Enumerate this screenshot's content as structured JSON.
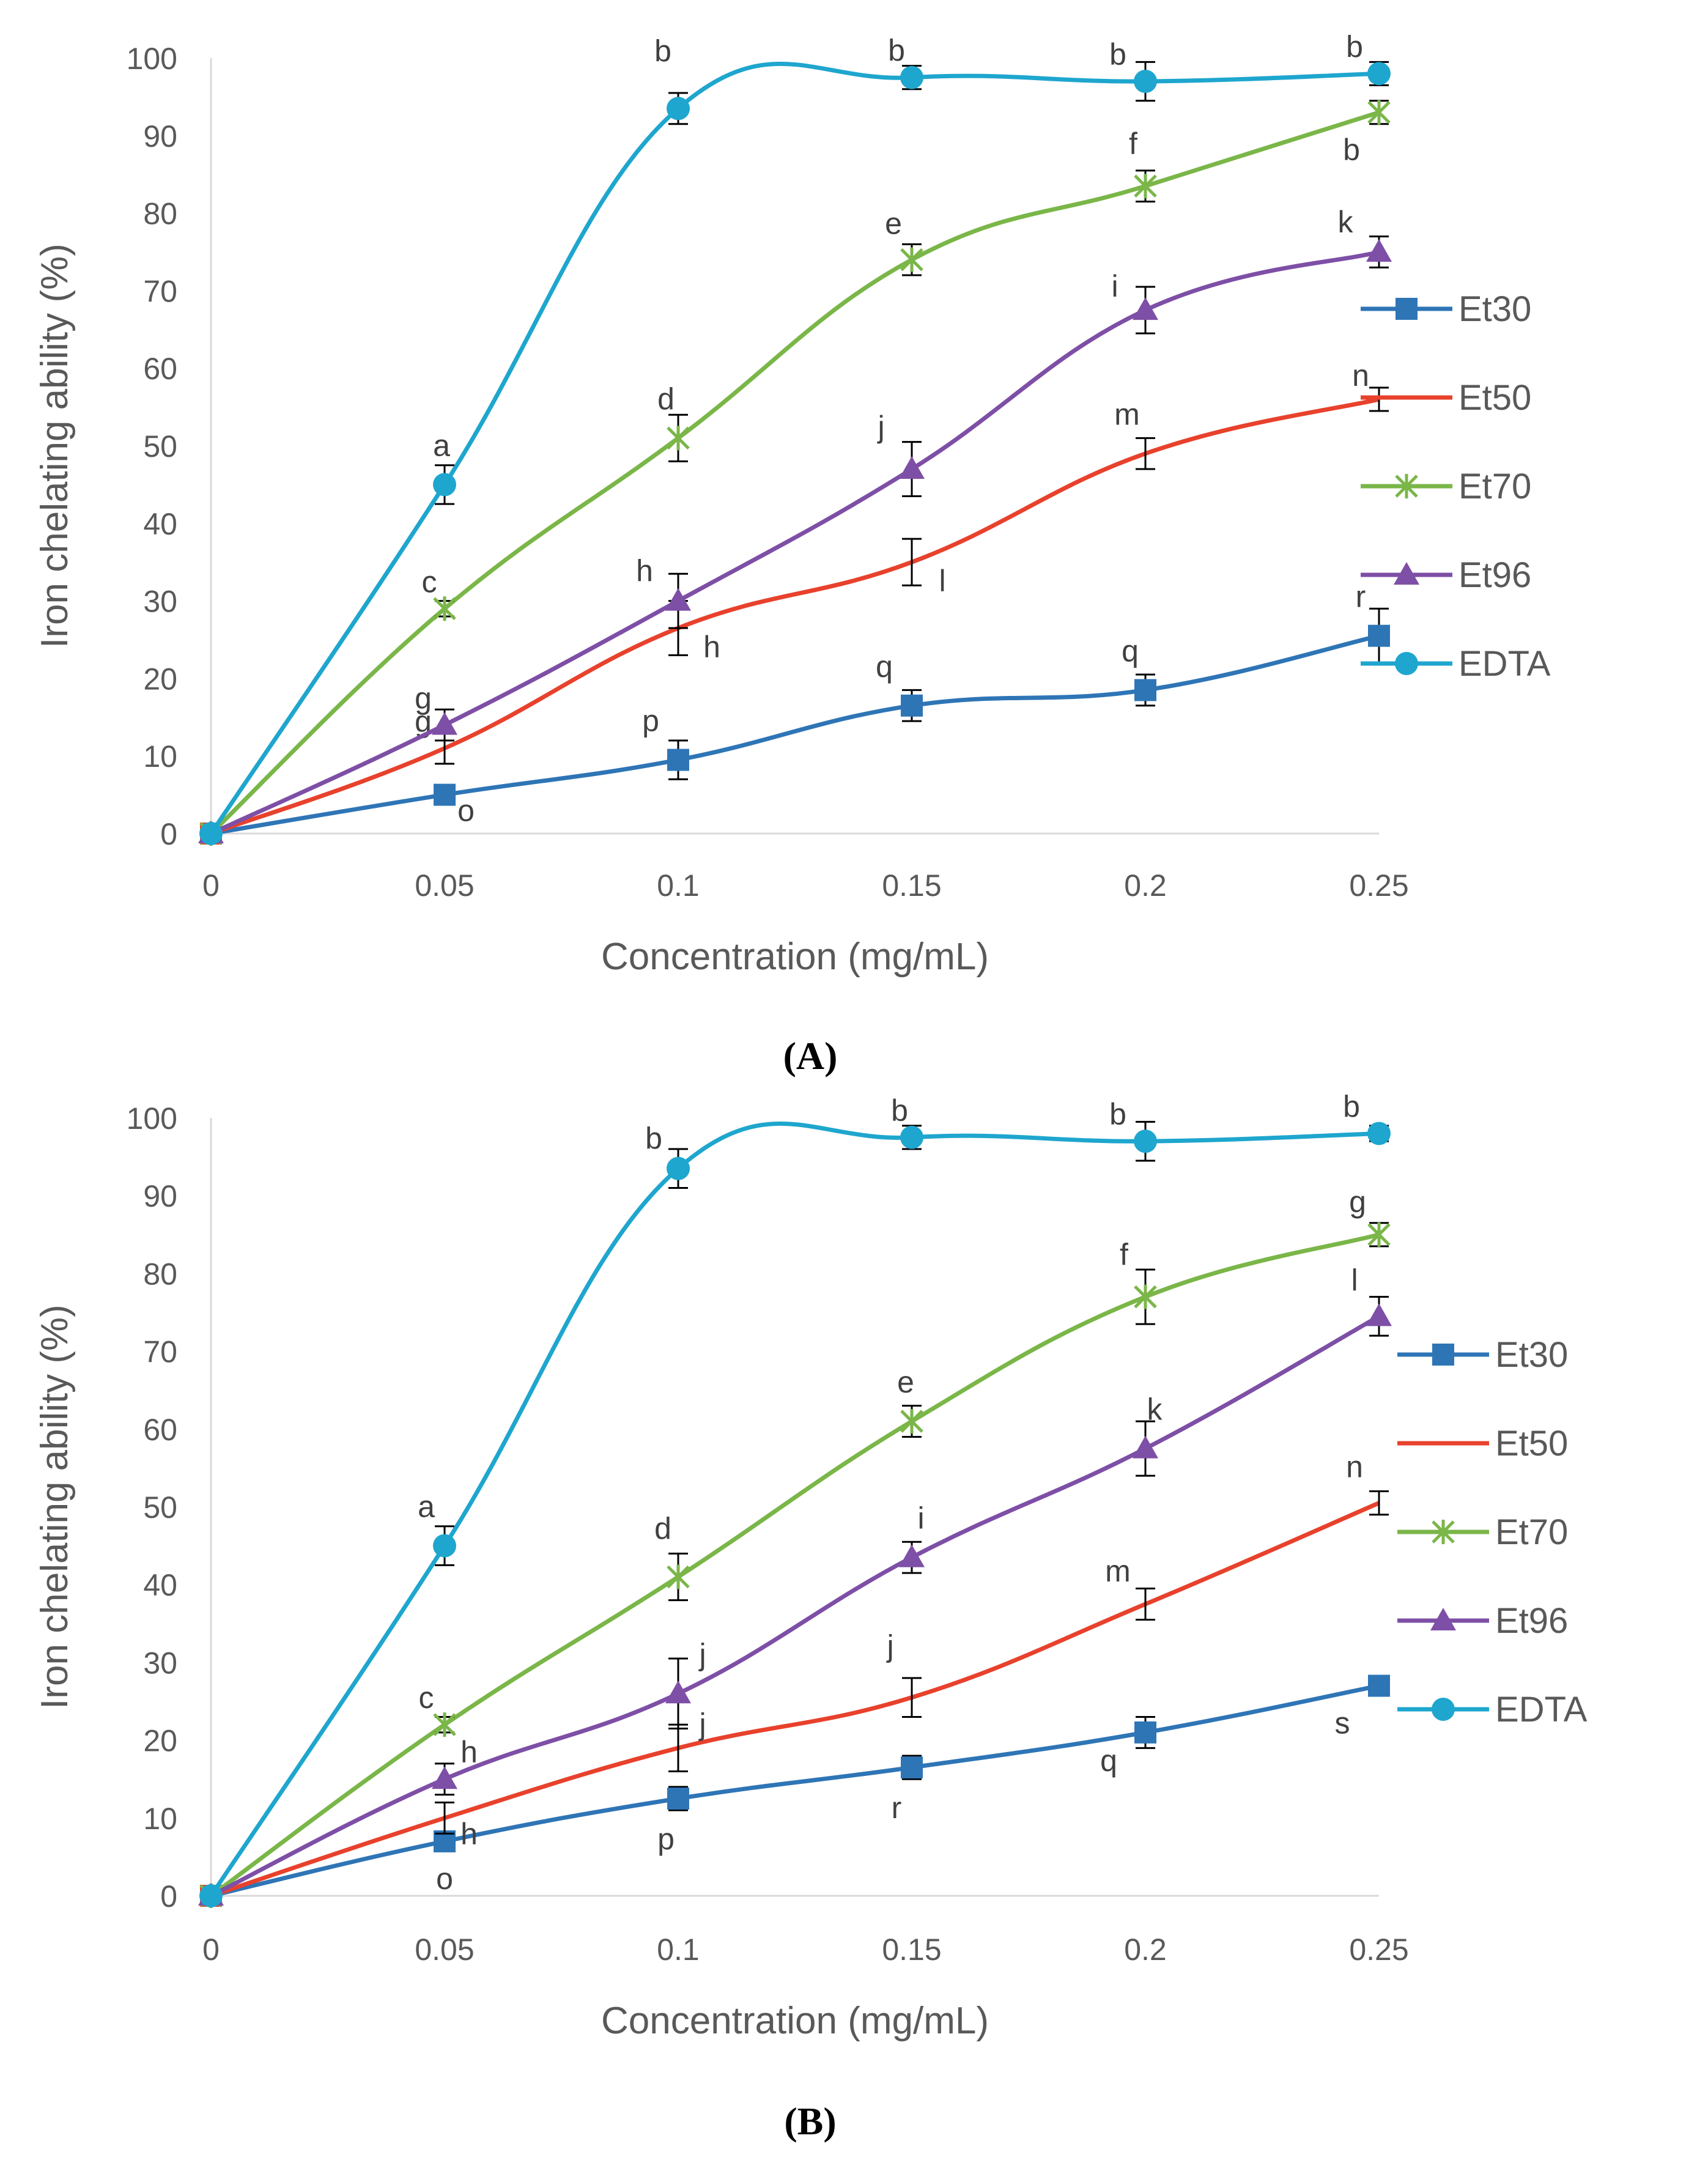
{
  "colors": {
    "Et30": "#2E75B6",
    "Et50": "#E8412C",
    "Et70": "#7AB648",
    "Et96": "#7E4FA6",
    "EDTA": "#1EA6CE",
    "axis": "#D9D9D9",
    "text": "#595959"
  },
  "chart_data": [
    {
      "type": "line",
      "panel_label": "A",
      "panel_label_text": "(A)",
      "xlabel": "Concentration (mg/mL)",
      "ylabel": "Iron chelating ability (%)",
      "x": [
        0,
        0.05,
        0.1,
        0.15,
        0.2,
        0.25
      ],
      "x_tick_labels": [
        "0",
        "0.05",
        "0.1",
        "0.15",
        "0.2",
        "0.25"
      ],
      "ylim": [
        0,
        100
      ],
      "y_tick_labels": [
        "0",
        "10",
        "20",
        "30",
        "40",
        "50",
        "60",
        "70",
        "80",
        "90",
        "100"
      ],
      "legend_position": "right",
      "series": [
        {
          "name": "Et30",
          "marker": "square",
          "values": [
            0,
            5,
            9.5,
            16.5,
            18.5,
            25.5
          ],
          "errors": [
            0,
            0.8,
            2.5,
            2,
            2,
            3.5
          ],
          "letters": [
            "",
            "o",
            "p",
            "q",
            "q",
            "r"
          ]
        },
        {
          "name": "Et50",
          "marker": "none",
          "values": [
            0,
            11,
            26.5,
            35,
            49,
            56
          ],
          "errors": [
            0,
            2,
            3.5,
            3,
            2,
            1.5
          ],
          "letters": [
            "",
            "g",
            "h",
            "l",
            "m",
            "n"
          ]
        },
        {
          "name": "Et70",
          "marker": "star",
          "values": [
            0,
            29,
            51,
            74,
            83.5,
            93
          ],
          "errors": [
            0,
            1,
            3,
            2,
            2,
            1.5
          ],
          "letters": [
            "",
            "c",
            "d",
            "e",
            "f",
            "b"
          ]
        },
        {
          "name": "Et96",
          "marker": "triangle",
          "values": [
            0,
            14,
            30,
            47,
            67.5,
            75
          ],
          "errors": [
            0,
            2,
            3.5,
            3.5,
            3,
            2
          ],
          "letters": [
            "",
            "g",
            "h",
            "j",
            "i",
            "k"
          ]
        },
        {
          "name": "EDTA",
          "marker": "circle",
          "values": [
            0,
            45,
            93.5,
            97.5,
            97,
            98
          ],
          "errors": [
            0,
            2.5,
            2,
            1.5,
            2.5,
            1.5
          ],
          "letters": [
            "",
            "a",
            "b",
            "b",
            "b",
            "b"
          ]
        }
      ]
    },
    {
      "type": "line",
      "panel_label": "B",
      "panel_label_text": "(B)",
      "xlabel": "Concentration (mg/mL)",
      "ylabel": "Iron chelating ability (%)",
      "x": [
        0,
        0.05,
        0.1,
        0.15,
        0.2,
        0.25
      ],
      "x_tick_labels": [
        "0",
        "0.05",
        "0.1",
        "0.15",
        "0.2",
        "0.25"
      ],
      "ylim": [
        0,
        100
      ],
      "y_tick_labels": [
        "0",
        "10",
        "20",
        "30",
        "40",
        "50",
        "60",
        "70",
        "80",
        "90",
        "100"
      ],
      "legend_position": "right",
      "series": [
        {
          "name": "Et30",
          "marker": "square",
          "values": [
            0,
            7,
            12.5,
            16.5,
            21,
            27
          ],
          "errors": [
            0,
            1,
            1.5,
            1.5,
            2,
            1
          ],
          "letters": [
            "",
            "o",
            "p",
            "r",
            "q",
            "s"
          ]
        },
        {
          "name": "Et50",
          "marker": "none",
          "values": [
            0,
            10,
            19,
            25.5,
            37.5,
            50.5
          ],
          "errors": [
            0,
            2,
            3,
            2.5,
            2,
            1.5
          ],
          "letters": [
            "",
            "h",
            "j",
            "j",
            "m",
            "n"
          ]
        },
        {
          "name": "Et70",
          "marker": "star",
          "values": [
            0,
            22,
            41,
            61,
            77,
            85
          ],
          "errors": [
            0,
            1,
            3,
            2,
            3.5,
            1.5
          ],
          "letters": [
            "",
            "c",
            "d",
            "e",
            "f",
            "g"
          ]
        },
        {
          "name": "Et96",
          "marker": "triangle",
          "values": [
            0,
            15,
            26,
            43.5,
            57.5,
            74.5
          ],
          "errors": [
            0,
            2,
            4.5,
            2,
            3.5,
            2.5
          ],
          "letters": [
            "",
            "h",
            "j",
            "i",
            "k",
            "l"
          ]
        },
        {
          "name": "EDTA",
          "marker": "circle",
          "values": [
            0,
            45,
            93.5,
            97.5,
            97,
            98
          ],
          "errors": [
            0,
            2.5,
            2.5,
            1.5,
            2.5,
            1
          ],
          "letters": [
            "",
            "a",
            "b",
            "b",
            "b",
            "b"
          ]
        }
      ]
    }
  ]
}
